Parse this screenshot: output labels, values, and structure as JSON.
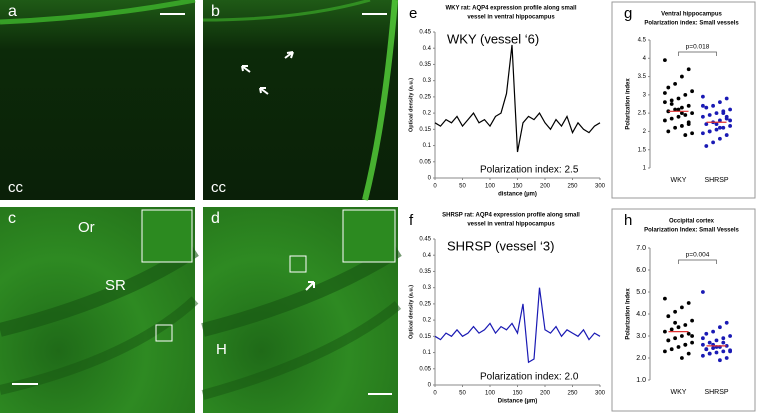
{
  "micrographs": [
    {
      "label": "a",
      "region": "cc"
    },
    {
      "label": "b",
      "region": "cc"
    },
    {
      "label": "c",
      "layers": [
        "Or",
        "SR"
      ]
    },
    {
      "label": "d",
      "region": "H"
    }
  ],
  "chart_data": [
    {
      "type": "line",
      "panel_label": "e",
      "title": [
        "WKY rat: AQP4 expression profile along small",
        "vessel in ventral hippocampus"
      ],
      "annotations": [
        "WKY (vessel ‘6)",
        "Polarization index: 2.5"
      ],
      "x_label": "distance (µm)",
      "y_label": "Optical density (a.u.)",
      "color": "#000000",
      "x": [
        0,
        10,
        20,
        30,
        40,
        50,
        60,
        70,
        80,
        90,
        100,
        110,
        120,
        130,
        140,
        150,
        160,
        170,
        180,
        190,
        200,
        210,
        220,
        230,
        240,
        250,
        260,
        270,
        280,
        290,
        300
      ],
      "values": [
        0.17,
        0.16,
        0.18,
        0.17,
        0.19,
        0.16,
        0.18,
        0.2,
        0.17,
        0.18,
        0.16,
        0.19,
        0.2,
        0.26,
        0.41,
        0.08,
        0.17,
        0.19,
        0.18,
        0.2,
        0.17,
        0.15,
        0.18,
        0.16,
        0.19,
        0.14,
        0.17,
        0.15,
        0.14,
        0.16,
        0.17
      ],
      "xlim": [
        0,
        300
      ],
      "xticks": [
        0,
        50,
        100,
        150,
        200,
        250,
        300
      ],
      "ylim": [
        0,
        0.45
      ],
      "yticks": [
        0,
        0.05,
        0.1,
        0.15,
        0.2,
        0.25,
        0.3,
        0.35,
        0.4,
        0.45
      ]
    },
    {
      "type": "line",
      "panel_label": "f",
      "title": [
        "SHRSP rat: AQP4 expression profile along small",
        "vessel in ventral hippocampus"
      ],
      "annotations": [
        "SHRSP (vessel ‘3)",
        "Polarization index: 2.0"
      ],
      "x_label": "Distance (µm)",
      "y_label": "Optical density (a.u.)",
      "color": "#1a1ab4",
      "x": [
        0,
        10,
        20,
        30,
        40,
        50,
        60,
        70,
        80,
        90,
        100,
        110,
        120,
        130,
        140,
        150,
        160,
        170,
        180,
        190,
        200,
        210,
        220,
        230,
        240,
        250,
        260,
        270,
        280,
        290,
        300
      ],
      "values": [
        0.15,
        0.14,
        0.16,
        0.15,
        0.17,
        0.15,
        0.16,
        0.18,
        0.16,
        0.17,
        0.19,
        0.16,
        0.18,
        0.17,
        0.19,
        0.16,
        0.25,
        0.07,
        0.08,
        0.3,
        0.17,
        0.16,
        0.18,
        0.15,
        0.17,
        0.16,
        0.15,
        0.17,
        0.14,
        0.16,
        0.15
      ],
      "xlim": [
        0,
        300
      ],
      "xticks": [
        0,
        50,
        100,
        150,
        200,
        250,
        300
      ],
      "ylim": [
        0,
        0.45
      ],
      "yticks": [
        0,
        0.05,
        0.1,
        0.15,
        0.2,
        0.25,
        0.3,
        0.35,
        0.4,
        0.45
      ]
    },
    {
      "type": "strip",
      "panel_label": "g",
      "title": [
        "Ventral hippocampus",
        "Polarization index: Small vessels"
      ],
      "y_label": "Polarization index",
      "p_value": "p=0.018",
      "categories": [
        "WKY",
        "SHRSP"
      ],
      "groups": [
        {
          "color": "#000000",
          "mean": 2.55,
          "values": [
            3.95,
            3.7,
            3.5,
            3.3,
            3.2,
            3.1,
            3.0,
            2.9,
            2.85,
            2.8,
            2.7,
            2.65,
            2.6,
            2.55,
            2.5,
            2.45,
            2.4,
            2.35,
            2.3,
            2.2,
            2.15,
            2.1,
            2.0,
            1.95,
            1.9,
            2.6,
            2.75,
            3.05,
            2.25,
            2.5
          ]
        },
        {
          "color": "#1a1ab4",
          "mean": 2.25,
          "values": [
            2.95,
            2.9,
            2.8,
            2.7,
            2.65,
            2.6,
            2.55,
            2.5,
            2.45,
            2.4,
            2.35,
            2.3,
            2.25,
            2.2,
            2.15,
            2.1,
            2.05,
            2.0,
            1.95,
            1.9,
            1.8,
            1.7,
            1.6,
            2.3,
            2.5,
            2.2,
            2.0,
            2.7,
            2.4,
            2.1
          ]
        }
      ],
      "mean_color": "#e03030",
      "ylim": [
        1,
        4.5
      ],
      "yticks": [
        1,
        1.5,
        2,
        2.5,
        3,
        3.5,
        4,
        4.5
      ]
    },
    {
      "type": "strip",
      "panel_label": "h",
      "title": [
        "Occipital cortex",
        "Polarization Index: Small Vessels"
      ],
      "y_label": "Polarization Index",
      "p_value": "p=0.004",
      "categories": [
        "WKY",
        "SHRSP"
      ],
      "groups": [
        {
          "color": "#000000",
          "mean": 3.2,
          "values": [
            4.7,
            4.5,
            4.3,
            4.1,
            3.9,
            3.7,
            3.5,
            3.4,
            3.3,
            3.2,
            3.1,
            3.0,
            2.9,
            2.8,
            2.7,
            2.6,
            2.5,
            2.4,
            2.3,
            2.2,
            2.0,
            3.6,
            2.8,
            3.0,
            2.6
          ]
        },
        {
          "color": "#1a1ab4",
          "mean": 2.55,
          "values": [
            5.0,
            3.6,
            3.4,
            3.2,
            3.1,
            3.0,
            2.9,
            2.8,
            2.7,
            2.6,
            2.55,
            2.5,
            2.45,
            2.4,
            2.35,
            2.3,
            2.25,
            2.2,
            2.1,
            2.0,
            1.9,
            2.6,
            2.4,
            2.3,
            2.7,
            2.5,
            2.2,
            2.9
          ]
        }
      ],
      "mean_color": "#e03030",
      "ylim": [
        1,
        7
      ],
      "yticks": [
        {
          "value": 1,
          "label": "1.0"
        },
        {
          "value": 2,
          "label": "2.0"
        },
        {
          "value": 3,
          "label": "3.0"
        },
        {
          "value": 4,
          "label": "4.0"
        },
        {
          "value": 5,
          "label": "5.0"
        },
        {
          "value": 6,
          "label": "6.0"
        },
        {
          "value": 7,
          "label": "7.0"
        }
      ]
    }
  ]
}
